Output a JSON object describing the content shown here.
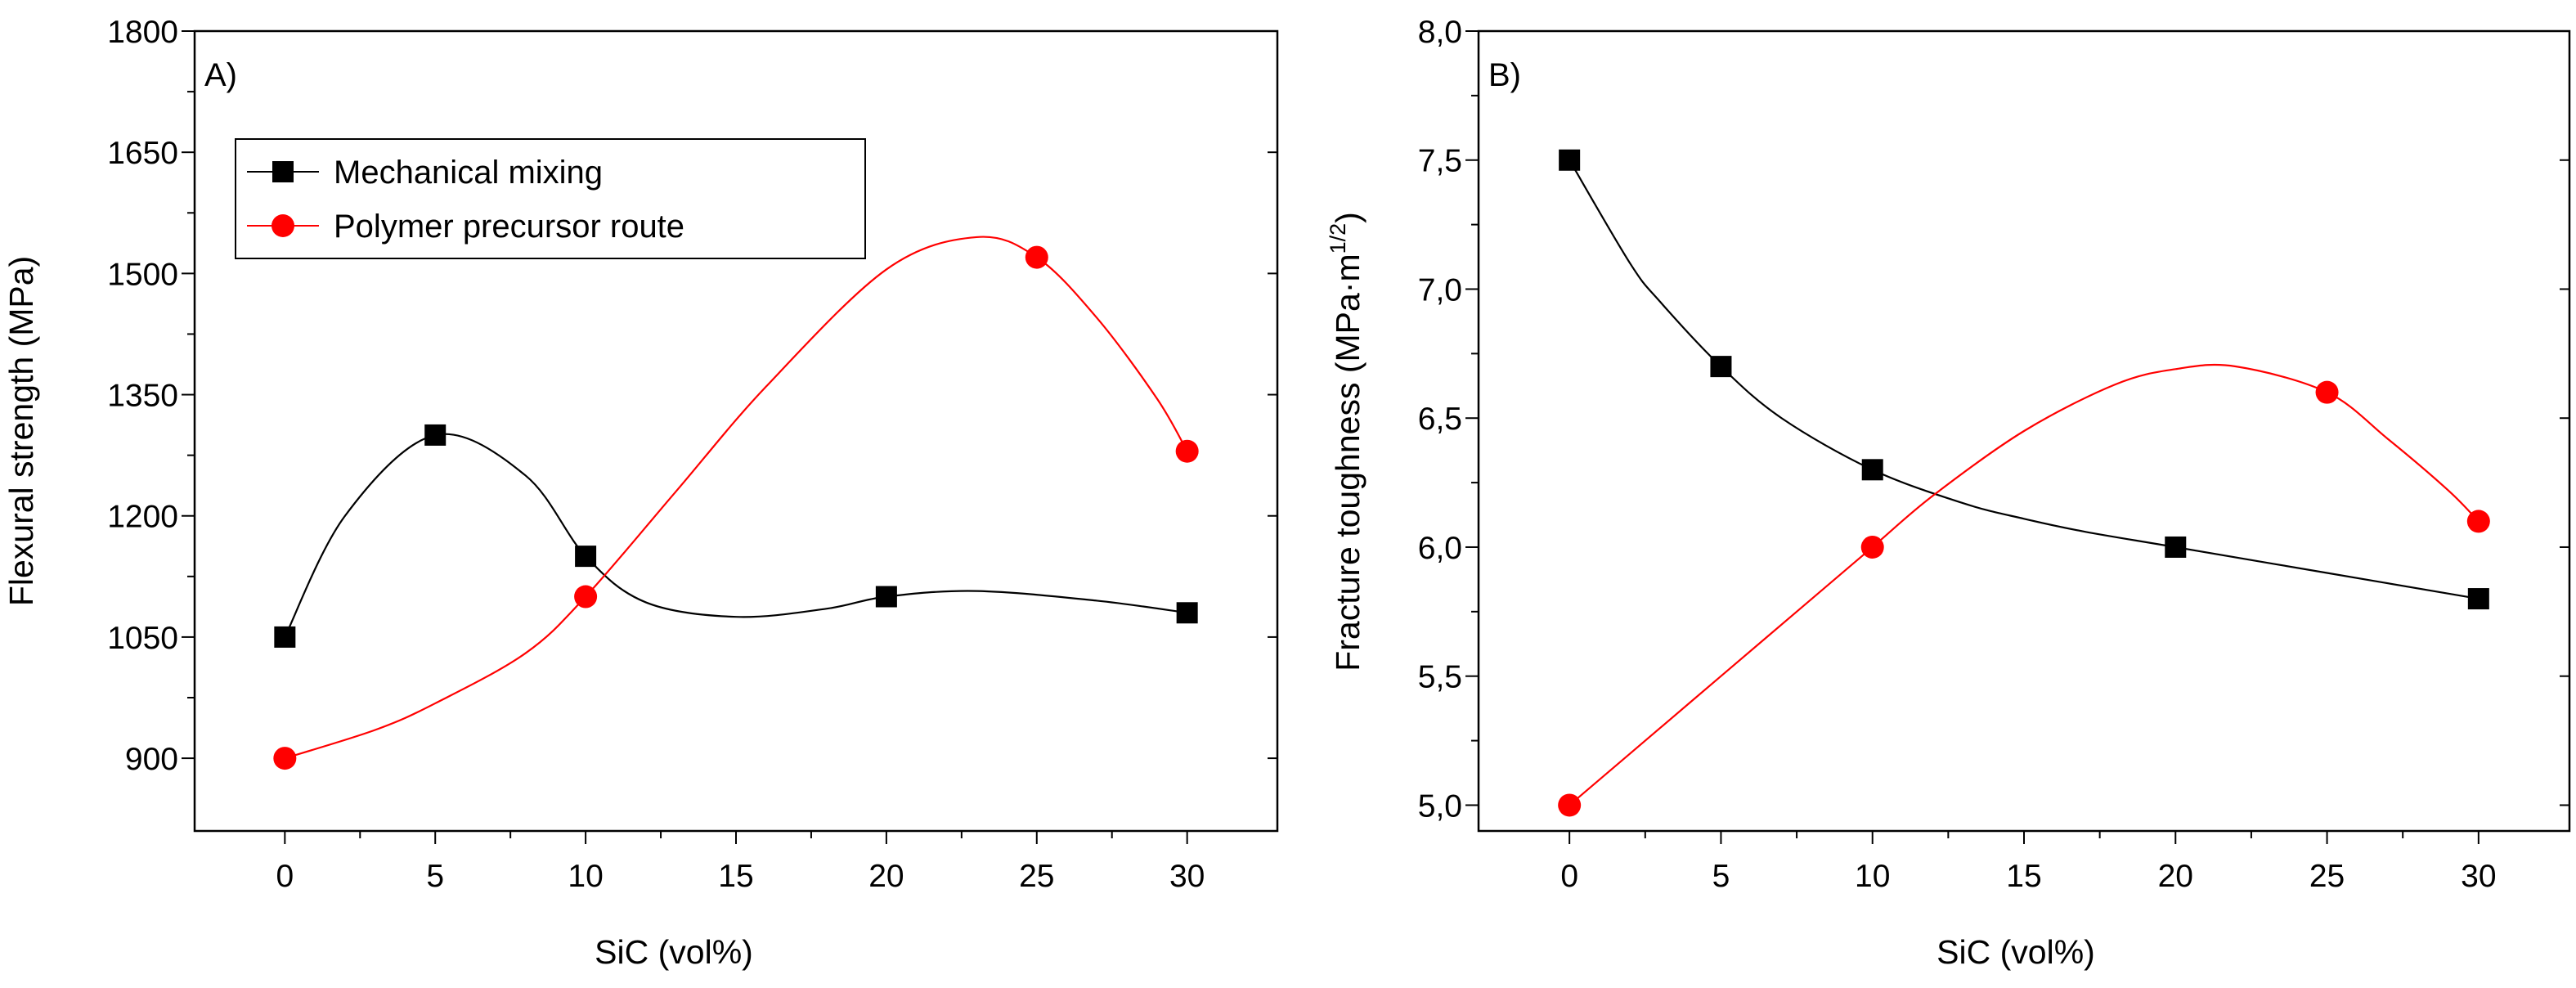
{
  "chart_data": [
    {
      "type": "line",
      "panel_label": "A)",
      "xlabel": "SiC (vol%)",
      "ylabel": "Flexural strength (MPa)",
      "xlim": [
        -3,
        33
      ],
      "ylim": [
        810,
        1800
      ],
      "xticks": [
        0,
        5,
        10,
        15,
        20,
        25,
        30
      ],
      "xtick_labels": [
        "0",
        "5",
        "10",
        "15",
        "20",
        "25",
        "30"
      ],
      "yticks": [
        900,
        1050,
        1200,
        1350,
        1500,
        1650,
        1800
      ],
      "ytick_labels": [
        "900",
        "1050",
        "1200",
        "1350",
        "1500",
        "1650",
        "1800"
      ],
      "grid": false,
      "legend": "top-left",
      "series": [
        {
          "name": "Mechanical mixing",
          "color": "#000000",
          "marker": "square",
          "x": [
            0,
            5,
            10,
            20,
            30
          ],
          "y": [
            1050,
            1300,
            1150,
            1100,
            1080
          ],
          "curve_x": [
            0,
            2,
            5,
            8,
            10,
            12,
            15,
            18,
            20,
            23,
            27,
            30
          ],
          "curve_y": [
            1050,
            1200,
            1300,
            1250,
            1150,
            1093,
            1075,
            1085,
            1100,
            1107,
            1095,
            1080
          ]
        },
        {
          "name": "Polymer precursor route",
          "color": "#ff0000",
          "marker": "circle",
          "x": [
            0,
            10,
            25,
            30
          ],
          "y": [
            900,
            1100,
            1520,
            1280
          ],
          "curve_x": [
            0,
            3,
            5,
            8,
            10,
            13,
            16,
            20,
            23,
            25,
            27,
            29,
            30
          ],
          "curve_y": [
            900,
            935,
            968,
            1030,
            1100,
            1230,
            1360,
            1505,
            1545,
            1520,
            1445,
            1345,
            1280
          ]
        }
      ]
    },
    {
      "type": "line",
      "panel_label": "B)",
      "xlabel": "SiC (vol%)",
      "ylabel_main": "Fracture toughness (MPa·m",
      "ylabel_sup": "1/2",
      "ylabel_end": ")",
      "xlim": [
        -3,
        33
      ],
      "ylim": [
        4.9,
        8.0
      ],
      "xticks": [
        0,
        5,
        10,
        15,
        20,
        25,
        30
      ],
      "xtick_labels": [
        "0",
        "5",
        "10",
        "15",
        "20",
        "25",
        "30"
      ],
      "yticks": [
        5.0,
        5.5,
        6.0,
        6.5,
        7.0,
        7.5,
        8.0
      ],
      "ytick_labels": [
        "5,0",
        "5,5",
        "6,0",
        "6,5",
        "7,0",
        "7,5",
        "8,0"
      ],
      "grid": false,
      "series": [
        {
          "name": "Mechanical mixing",
          "color": "#000000",
          "marker": "square",
          "x": [
            0,
            5,
            10,
            20,
            30
          ],
          "y": [
            7.5,
            6.7,
            6.3,
            6.0,
            5.8
          ],
          "curve_x": [
            0,
            2,
            3,
            5,
            7,
            10,
            13,
            15,
            17,
            20,
            25,
            30
          ],
          "curve_y": [
            7.5,
            7.1,
            6.95,
            6.7,
            6.5,
            6.3,
            6.17,
            6.11,
            6.06,
            6.0,
            5.9,
            5.8
          ]
        },
        {
          "name": "Polymer precursor route",
          "color": "#ff0000",
          "marker": "circle",
          "x": [
            0,
            10,
            25,
            30
          ],
          "y": [
            5.0,
            6.0,
            6.6,
            6.1
          ],
          "curve_x": [
            0,
            3,
            5,
            8,
            10,
            12,
            15,
            18,
            20,
            22,
            25,
            27,
            29,
            30
          ],
          "curve_y": [
            5.0,
            5.3,
            5.5,
            5.8,
            6.0,
            6.2,
            6.45,
            6.63,
            6.69,
            6.7,
            6.6,
            6.42,
            6.22,
            6.1
          ]
        }
      ]
    }
  ]
}
